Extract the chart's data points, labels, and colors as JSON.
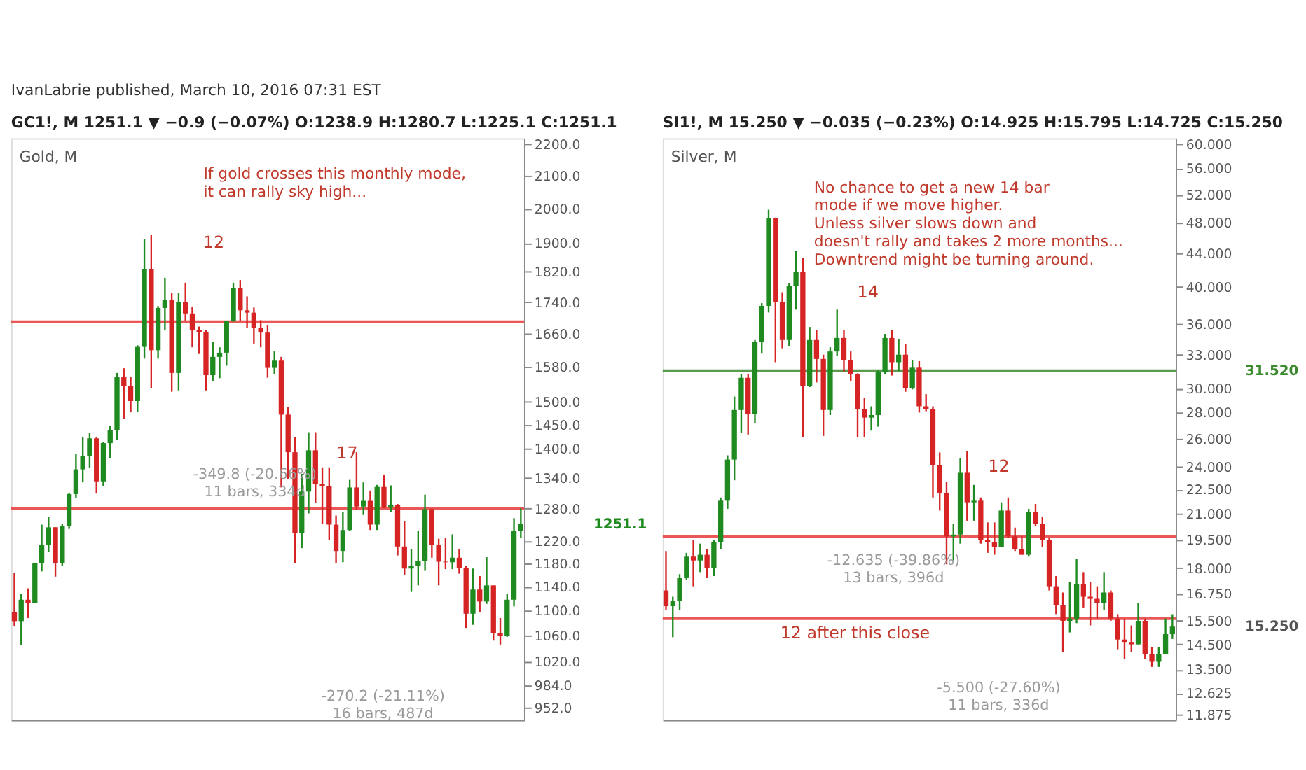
{
  "chart_data": [
    {
      "type": "candlestick",
      "title": "GC1!, M 1251.1 ▼ −0.9 (−0.07%) O:1238.9 H:1280.7 L:1225.1 C:1251.1",
      "subtitle": "Gold, M",
      "tick_labels": "y",
      "log": true,
      "categories": [
        null,
        null,
        null,
        null,
        null,
        null,
        null,
        null,
        null,
        null,
        null,
        null,
        null,
        null,
        null,
        null,
        null,
        null,
        null,
        null,
        null,
        null,
        null,
        null,
        null,
        null,
        null,
        null,
        null,
        null,
        null,
        null,
        null,
        null,
        null,
        null,
        null,
        null,
        null,
        null,
        null,
        null,
        null,
        null,
        null,
        null,
        null,
        null,
        null,
        null,
        null,
        null,
        null,
        null,
        null,
        null,
        null,
        null,
        null,
        null,
        null,
        null,
        null,
        null,
        null,
        null,
        null,
        null,
        null,
        null,
        null,
        null,
        null,
        null,
        null
      ],
      "ohlc": [
        [
          1097,
          1163,
          1075,
          1083
        ],
        [
          1083,
          1128,
          1045,
          1118
        ],
        [
          1118,
          1137,
          1088,
          1113
        ],
        [
          1113,
          1180,
          1113,
          1180
        ],
        [
          1180,
          1250,
          1166,
          1213
        ],
        [
          1213,
          1265,
          1200,
          1245
        ],
        [
          1245,
          1245,
          1157,
          1181
        ],
        [
          1181,
          1251,
          1175,
          1247
        ],
        [
          1247,
          1310,
          1242,
          1308
        ],
        [
          1308,
          1388,
          1300,
          1357
        ],
        [
          1357,
          1424,
          1331,
          1385
        ],
        [
          1385,
          1432,
          1360,
          1421
        ],
        [
          1421,
          1424,
          1309,
          1333
        ],
        [
          1333,
          1413,
          1324,
          1411
        ],
        [
          1411,
          1447,
          1380,
          1439
        ],
        [
          1439,
          1566,
          1418,
          1556
        ],
        [
          1556,
          1577,
          1462,
          1536
        ],
        [
          1536,
          1557,
          1477,
          1502
        ],
        [
          1502,
          1632,
          1478,
          1628
        ],
        [
          1628,
          1912,
          1600,
          1828
        ],
        [
          1828,
          1923,
          1532,
          1620
        ],
        [
          1620,
          1730,
          1600,
          1725
        ],
        [
          1725,
          1804,
          1670,
          1746
        ],
        [
          1746,
          1764,
          1523,
          1566
        ],
        [
          1566,
          1764,
          1526,
          1740
        ],
        [
          1740,
          1791,
          1693,
          1711
        ],
        [
          1711,
          1727,
          1627,
          1669
        ],
        [
          1669,
          1678,
          1611,
          1664
        ],
        [
          1664,
          1669,
          1526,
          1561
        ],
        [
          1561,
          1640,
          1547,
          1604
        ],
        [
          1604,
          1627,
          1554,
          1614
        ],
        [
          1614,
          1692,
          1583,
          1691
        ],
        [
          1691,
          1791,
          1690,
          1776
        ],
        [
          1776,
          1798,
          1692,
          1719
        ],
        [
          1719,
          1755,
          1674,
          1713
        ],
        [
          1713,
          1726,
          1636,
          1675
        ],
        [
          1675,
          1694,
          1627,
          1663
        ],
        [
          1663,
          1682,
          1555,
          1578
        ],
        [
          1578,
          1617,
          1563,
          1595
        ],
        [
          1595,
          1604,
          1321,
          1472
        ],
        [
          1472,
          1488,
          1338,
          1392
        ],
        [
          1392,
          1424,
          1180,
          1234
        ],
        [
          1234,
          1348,
          1207,
          1313
        ],
        [
          1313,
          1434,
          1271,
          1396
        ],
        [
          1396,
          1434,
          1291,
          1327
        ],
        [
          1327,
          1361,
          1251,
          1323
        ],
        [
          1323,
          1361,
          1222,
          1250
        ],
        [
          1250,
          1267,
          1180,
          1202
        ],
        [
          1202,
          1274,
          1182,
          1240
        ],
        [
          1240,
          1336,
          1238,
          1321
        ],
        [
          1321,
          1392,
          1277,
          1284
        ],
        [
          1284,
          1331,
          1268,
          1295
        ],
        [
          1295,
          1315,
          1240,
          1250
        ],
        [
          1250,
          1326,
          1240,
          1322
        ],
        [
          1322,
          1346,
          1281,
          1282
        ],
        [
          1282,
          1325,
          1273,
          1287
        ],
        [
          1287,
          1289,
          1194,
          1210
        ],
        [
          1210,
          1256,
          1160,
          1171
        ],
        [
          1171,
          1206,
          1131,
          1175
        ],
        [
          1175,
          1238,
          1142,
          1184
        ],
        [
          1184,
          1307,
          1167,
          1279
        ],
        [
          1279,
          1280,
          1190,
          1213
        ],
        [
          1213,
          1224,
          1142,
          1183
        ],
        [
          1183,
          1225,
          1170,
          1182
        ],
        [
          1182,
          1232,
          1170,
          1190
        ],
        [
          1190,
          1205,
          1162,
          1172
        ],
        [
          1172,
          1175,
          1072,
          1095
        ],
        [
          1095,
          1171,
          1077,
          1135
        ],
        [
          1135,
          1158,
          1098,
          1115
        ],
        [
          1115,
          1191,
          1111,
          1142
        ],
        [
          1142,
          1142,
          1052,
          1064
        ],
        [
          1064,
          1088,
          1046,
          1060
        ],
        [
          1060,
          1128,
          1058,
          1118
        ],
        [
          1118,
          1262,
          1107,
          1238.9
        ],
        [
          1238.9,
          1280.7,
          1225.1,
          1251.1
        ]
      ],
      "ylim": [
        935,
        2220
      ],
      "yticks": [
        {
          "value": 952,
          "label": "952.0"
        },
        {
          "value": 984,
          "label": "984.0"
        },
        {
          "value": 1020,
          "label": "1020.0"
        },
        {
          "value": 1060,
          "label": "1060.0"
        },
        {
          "value": 1100,
          "label": "1100.0"
        },
        {
          "value": 1140,
          "label": "1140.0"
        },
        {
          "value": 1180,
          "label": "1180.0"
        },
        {
          "value": 1220,
          "label": "1220.0"
        },
        {
          "value": 1280,
          "label": "1280.0"
        },
        {
          "value": 1340,
          "label": "1340.0"
        },
        {
          "value": 1400,
          "label": "1400.0"
        },
        {
          "value": 1450,
          "label": "1450.0"
        },
        {
          "value": 1500,
          "label": "1500.0"
        },
        {
          "value": 1580,
          "label": "1580.0"
        },
        {
          "value": 1660,
          "label": "1660.0"
        },
        {
          "value": 1740,
          "label": "1740.0"
        },
        {
          "value": 1820,
          "label": "1820.0"
        },
        {
          "value": 1900,
          "label": "1900.0"
        },
        {
          "value": 2000,
          "label": "2000.0"
        },
        {
          "value": 2100,
          "label": "2100.0"
        },
        {
          "value": 2200,
          "label": "2200.0"
        }
      ],
      "ref_lines": [
        {
          "axis": "y",
          "value": 1690,
          "color": "#e83a3a"
        },
        {
          "axis": "y",
          "value": 1280,
          "color": "#e83a3a"
        }
      ],
      "annotations": [
        "IvanLabrie published, March 10, 2016 07:31 EST",
        "If gold crosses this monthly mode,\nit can rally sky high...",
        "12",
        "17",
        "-349.8 (-20.66%)\n11 bars, 334d",
        "-270.2 (-21.11%)\n16 bars, 487d",
        "1251.1"
      ]
    },
    {
      "type": "candlestick",
      "title": "SI1!, M 15.250 ▼ −0.035 (−0.23%) O:14.925 H:15.795 L:14.725 C:15.250",
      "subtitle": "Silver, M",
      "tick_labels": "y",
      "log": true,
      "categories": [
        null,
        null,
        null,
        null,
        null,
        null,
        null,
        null,
        null,
        null,
        null,
        null,
        null,
        null,
        null,
        null,
        null,
        null,
        null,
        null,
        null,
        null,
        null,
        null,
        null,
        null,
        null,
        null,
        null,
        null,
        null,
        null,
        null,
        null,
        null,
        null,
        null,
        null,
        null,
        null,
        null,
        null,
        null,
        null,
        null,
        null,
        null,
        null,
        null,
        null,
        null,
        null,
        null,
        null,
        null,
        null,
        null,
        null,
        null,
        null,
        null,
        null,
        null,
        null,
        null,
        null,
        null,
        null,
        null,
        null,
        null,
        null,
        null,
        null,
        null
      ],
      "ohlc": [
        [
          16.9,
          18.9,
          16.0,
          16.16
        ],
        [
          16.16,
          16.6,
          14.8,
          16.4
        ],
        [
          16.4,
          17.7,
          16.0,
          17.5
        ],
        [
          17.5,
          18.8,
          17.4,
          18.6
        ],
        [
          18.6,
          19.5,
          17.1,
          18.4
        ],
        [
          18.4,
          19.3,
          17.8,
          18.7
        ],
        [
          18.7,
          19.0,
          17.5,
          18.0
        ],
        [
          18.0,
          19.5,
          17.6,
          19.4
        ],
        [
          19.4,
          22.0,
          19.0,
          21.8
        ],
        [
          21.8,
          24.8,
          21.3,
          24.5
        ],
        [
          24.5,
          29.3,
          23.1,
          28.2
        ],
        [
          28.2,
          31.2,
          26.4,
          30.9
        ],
        [
          30.9,
          31.2,
          26.3,
          27.9
        ],
        [
          27.9,
          34.4,
          27.2,
          34.2
        ],
        [
          34.2,
          38.2,
          33.1,
          37.9
        ],
        [
          37.9,
          49.8,
          37.2,
          48.6
        ],
        [
          48.6,
          48.7,
          32.3,
          38.3
        ],
        [
          38.3,
          39.4,
          33.6,
          34.4
        ],
        [
          34.4,
          40.4,
          33.8,
          40.1
        ],
        [
          40.1,
          44.3,
          37.5,
          41.7
        ],
        [
          41.7,
          43.4,
          26.1,
          30.2
        ],
        [
          30.2,
          35.7,
          30.1,
          34.4
        ],
        [
          34.4,
          35.4,
          30.5,
          32.6
        ],
        [
          32.6,
          33.0,
          26.2,
          28.2
        ],
        [
          28.2,
          33.7,
          27.8,
          33.3
        ],
        [
          33.3,
          37.5,
          32.9,
          34.6
        ],
        [
          34.6,
          35.4,
          31.4,
          32.5
        ],
        [
          32.5,
          33.3,
          30.6,
          31.2
        ],
        [
          31.2,
          31.3,
          26.1,
          28.3
        ],
        [
          28.3,
          29.2,
          26.1,
          27.6
        ],
        [
          27.6,
          28.5,
          26.6,
          27.8
        ],
        [
          27.8,
          31.6,
          26.9,
          31.4
        ],
        [
          31.4,
          35.0,
          31.2,
          34.6
        ],
        [
          34.6,
          35.4,
          31.1,
          32.3
        ],
        [
          32.3,
          34.5,
          31.5,
          33.0
        ],
        [
          33.0,
          34.0,
          29.7,
          30.0
        ],
        [
          30.0,
          32.5,
          29.9,
          31.8
        ],
        [
          31.8,
          32.4,
          28.0,
          28.5
        ],
        [
          28.5,
          29.5,
          28.1,
          28.3
        ],
        [
          28.3,
          28.5,
          22.0,
          24.1
        ],
        [
          24.1,
          25.0,
          21.2,
          22.3
        ],
        [
          22.3,
          23.0,
          18.2,
          19.7
        ],
        [
          19.7,
          20.4,
          18.4,
          19.8
        ],
        [
          19.8,
          24.6,
          19.3,
          23.6
        ],
        [
          23.6,
          25.1,
          20.6,
          21.7
        ],
        [
          21.7,
          22.8,
          20.6,
          21.8
        ],
        [
          21.8,
          22.0,
          19.3,
          19.5
        ],
        [
          19.5,
          20.5,
          18.8,
          19.4
        ],
        [
          19.4,
          20.5,
          18.7,
          19.1
        ],
        [
          19.1,
          21.7,
          19.1,
          21.2
        ],
        [
          21.2,
          22.0,
          19.6,
          19.7
        ],
        [
          19.7,
          20.2,
          18.9,
          19.0
        ],
        [
          19.0,
          19.7,
          18.7,
          18.7
        ],
        [
          18.7,
          21.3,
          18.6,
          21.1
        ],
        [
          21.1,
          21.6,
          20.3,
          20.4
        ],
        [
          20.4,
          20.8,
          19.1,
          19.5
        ],
        [
          19.5,
          19.6,
          16.9,
          17.1
        ],
        [
          17.1,
          17.6,
          15.8,
          16.2
        ],
        [
          16.2,
          16.8,
          14.2,
          15.5
        ],
        [
          15.5,
          17.3,
          15.0,
          15.6
        ],
        [
          15.6,
          18.5,
          15.4,
          17.2
        ],
        [
          17.2,
          17.8,
          16.1,
          16.6
        ],
        [
          16.6,
          17.3,
          15.3,
          16.5
        ],
        [
          16.5,
          17.1,
          15.6,
          16.3
        ],
        [
          16.3,
          17.8,
          16.0,
          16.8
        ],
        [
          16.8,
          16.9,
          15.5,
          15.6
        ],
        [
          15.6,
          15.8,
          14.3,
          14.7
        ],
        [
          14.7,
          15.6,
          13.9,
          14.6
        ],
        [
          14.6,
          15.3,
          14.2,
          14.5
        ],
        [
          14.5,
          16.3,
          14.5,
          15.5
        ],
        [
          15.5,
          15.6,
          13.9,
          14.1
        ],
        [
          14.1,
          14.4,
          13.6,
          13.8
        ],
        [
          13.8,
          14.4,
          13.6,
          14.1
        ],
        [
          14.1,
          15.6,
          14.1,
          14.925
        ],
        [
          14.925,
          15.795,
          14.725,
          15.25
        ]
      ],
      "ylim": [
        11.7,
        61
      ],
      "yticks": [
        {
          "value": 11.875,
          "label": "11.875"
        },
        {
          "value": 12.625,
          "label": "12.625"
        },
        {
          "value": 13.5,
          "label": "13.500"
        },
        {
          "value": 14.5,
          "label": "14.500"
        },
        {
          "value": 15.5,
          "label": "15.500"
        },
        {
          "value": 16.75,
          "label": "16.750"
        },
        {
          "value": 18,
          "label": "18.000"
        },
        {
          "value": 19.5,
          "label": "19.500"
        },
        {
          "value": 21,
          "label": "21.000"
        },
        {
          "value": 22.5,
          "label": "22.500"
        },
        {
          "value": 24,
          "label": "24.000"
        },
        {
          "value": 26,
          "label": "26.000"
        },
        {
          "value": 28,
          "label": "28.000"
        },
        {
          "value": 30,
          "label": "30.000"
        },
        {
          "value": 33,
          "label": "33.000"
        },
        {
          "value": 36,
          "label": "36.000"
        },
        {
          "value": 40,
          "label": "40.000"
        },
        {
          "value": 44,
          "label": "44.000"
        },
        {
          "value": 48,
          "label": "48.000"
        },
        {
          "value": 52,
          "label": "52.000"
        },
        {
          "value": 56,
          "label": "56.000"
        },
        {
          "value": 60,
          "label": "60.000"
        }
      ],
      "ref_lines": [
        {
          "axis": "y",
          "value": 31.52,
          "label": "31.520",
          "color": "#3c8a2e"
        },
        {
          "axis": "y",
          "value": 19.7,
          "color": "#e83a3a"
        },
        {
          "axis": "y",
          "value": 15.6,
          "color": "#e83a3a"
        }
      ],
      "annotations": [
        "No chance to get a new 14 bar\nmode if we move higher.\nUnless silver slows down and\ndoesn't rally and takes 2 more months...\nDowntrend might be turning around.",
        "14",
        "12",
        "12 after this close",
        "-12.635 (-39.86%)\n13 bars, 396d",
        "-5.500 (-27.60%)\n11 bars, 336d",
        "15.250"
      ]
    }
  ]
}
